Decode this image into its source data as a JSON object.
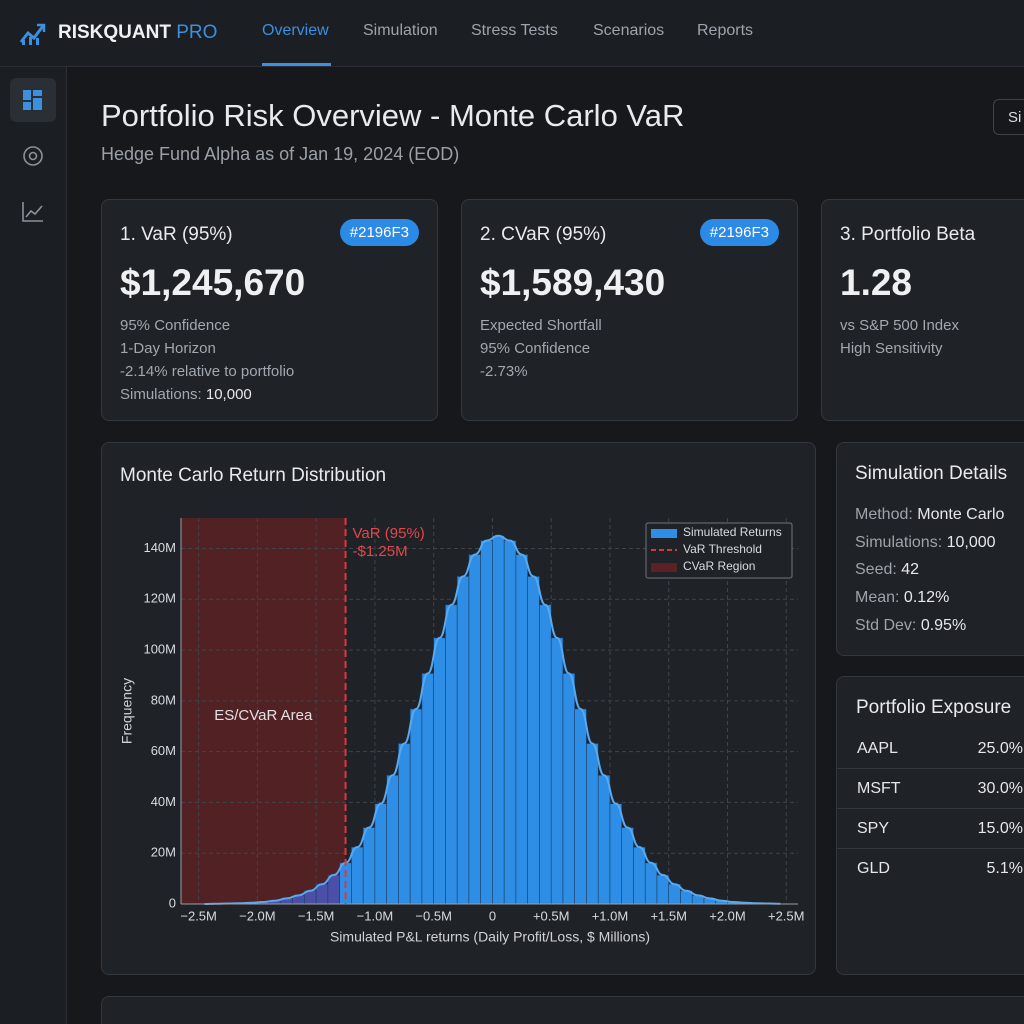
{
  "nav": {
    "brand": "RISKQUANT",
    "brand_suffix": "PRO",
    "tabs": [
      "Overview",
      "Simulation",
      "Stress Tests",
      "Scenarios",
      "Reports"
    ]
  },
  "header": {
    "title": "Portfolio Risk Overview - Monte Carlo VaR",
    "subtitle": "Hedge Fund Alpha as of Jan 19, 2024 (EOD)",
    "button": "Si"
  },
  "cards": [
    {
      "title": "1.  VaR (95%)",
      "badge": "#2196F3",
      "value": "$1,245,670",
      "lines": [
        "95% Confidence",
        "1-Day Horizon",
        "-2.14% relative to portfolio"
      ],
      "extra": {
        "label": "Simulations:",
        "value": "10,000"
      }
    },
    {
      "title": "2.  CVaR (95%)",
      "badge": "#2196F3",
      "value": "$1,589,430",
      "lines": [
        "Expected Shortfall",
        "95% Confidence",
        "-2.73%"
      ]
    },
    {
      "title": "3.  Portfolio Beta",
      "value": "1.28",
      "lines": [
        "vs S&P 500 Index",
        "High Sensitivity"
      ]
    }
  ],
  "chart_data": {
    "type": "histogram",
    "title": "Monte Carlo Return Distribution",
    "x_label": "Simulated P&L returns (Daily Profit/Loss, $ Millions)",
    "y_label": "Frequency",
    "bins": [
      -2.5,
      -2.4,
      -2.3,
      -2.2,
      -2.1,
      -2.0,
      -1.9,
      -1.8,
      -1.7,
      -1.6,
      -1.5,
      -1.4,
      -1.3,
      -1.2,
      -1.1,
      -1.0,
      -0.9,
      -0.8,
      -0.7,
      -0.6,
      -0.5,
      -0.4,
      -0.3,
      -0.2,
      -0.1,
      0,
      0.1,
      0.2,
      0.3,
      0.4,
      0.5,
      0.6,
      0.7,
      0.8,
      0.9,
      1.0,
      1.1,
      1.2,
      1.3,
      1.4,
      1.5,
      1.6,
      1.7,
      1.8,
      1.9,
      2.0,
      2.1,
      2.2,
      2.3,
      2.4,
      2.5
    ],
    "series": [
      {
        "name": "Simulated Returns",
        "color": "#2e8ee6",
        "values": [
          0,
          0.1,
          0.2,
          0.3,
          0.5,
          0.8,
          1.3,
          2.2,
          3.4,
          5.2,
          7.8,
          11.4,
          16.2,
          22.4,
          30.1,
          39.5,
          50.7,
          63.2,
          76.8,
          90.8,
          104.8,
          117.8,
          129,
          137.6,
          143.1,
          145,
          143.1,
          137.6,
          129,
          117.8,
          104.8,
          90.8,
          76.8,
          63.2,
          50.7,
          39.5,
          30.1,
          22.4,
          16.2,
          11.4,
          7.8,
          5.2,
          3.4,
          2.2,
          1.3,
          0.8,
          0.5,
          0.3,
          0.2,
          0.1
        ]
      }
    ],
    "tail_color": "#4b4fa8",
    "curve_color": "#5aa8ee",
    "var_line": {
      "name": "VaR Threshold",
      "value": -1.25,
      "color": "#d8393b"
    },
    "cvar_region": {
      "name": "CVaR Region",
      "color": "#5c2124"
    },
    "annotations": {
      "var_title": "VaR (95%)",
      "var_label": "-$1.25M",
      "area_label": "ES/CVaR Area"
    },
    "xlim": [
      -2.65,
      2.6
    ],
    "ylim": [
      0,
      152
    ],
    "xticks": [
      {
        "value": -2.5,
        "label": "−2.5M"
      },
      {
        "value": -2.0,
        "label": "−2.0M"
      },
      {
        "value": -1.5,
        "label": "−1.5M"
      },
      {
        "value": -1.0,
        "label": "−1.0M"
      },
      {
        "value": -0.5,
        "label": "−0.5M"
      },
      0,
      {
        "value": 0.5,
        "label": "+0.5M"
      },
      {
        "value": 1.0,
        "label": "+1.0M"
      },
      {
        "value": 1.5,
        "label": "+1.5M"
      },
      {
        "value": 2.0,
        "label": "+2.0M"
      },
      {
        "value": 2.5,
        "label": "+2.5M"
      }
    ],
    "yticks": [
      0,
      {
        "value": 20,
        "label": "20M"
      },
      {
        "value": 40,
        "label": "40M"
      },
      {
        "value": 60,
        "label": "60M"
      },
      {
        "value": 80,
        "label": "80M"
      },
      {
        "value": 100,
        "label": "100M"
      },
      {
        "value": 120,
        "label": "120M"
      },
      {
        "value": 140,
        "label": "140M"
      }
    ],
    "grid": true,
    "legend": "upper right"
  },
  "simulation_details": {
    "title": "Simulation Details",
    "rows": [
      {
        "label": "Method:",
        "value": "Monte Carlo"
      },
      {
        "label": "Simulations:",
        "value": "10,000"
      },
      {
        "label": "Seed:",
        "value": "42"
      },
      {
        "label": "Mean:",
        "value": "0.12%"
      },
      {
        "label": "Std Dev:",
        "value": "0.95%"
      }
    ]
  },
  "exposure": {
    "title": "Portfolio Exposure",
    "rows": [
      {
        "ticker": "AAPL",
        "weight": "25.0%"
      },
      {
        "ticker": "MSFT",
        "weight": "30.0%"
      },
      {
        "ticker": "SPY",
        "weight": "15.0%"
      },
      {
        "ticker": "GLD",
        "weight": "5.1%"
      }
    ]
  }
}
